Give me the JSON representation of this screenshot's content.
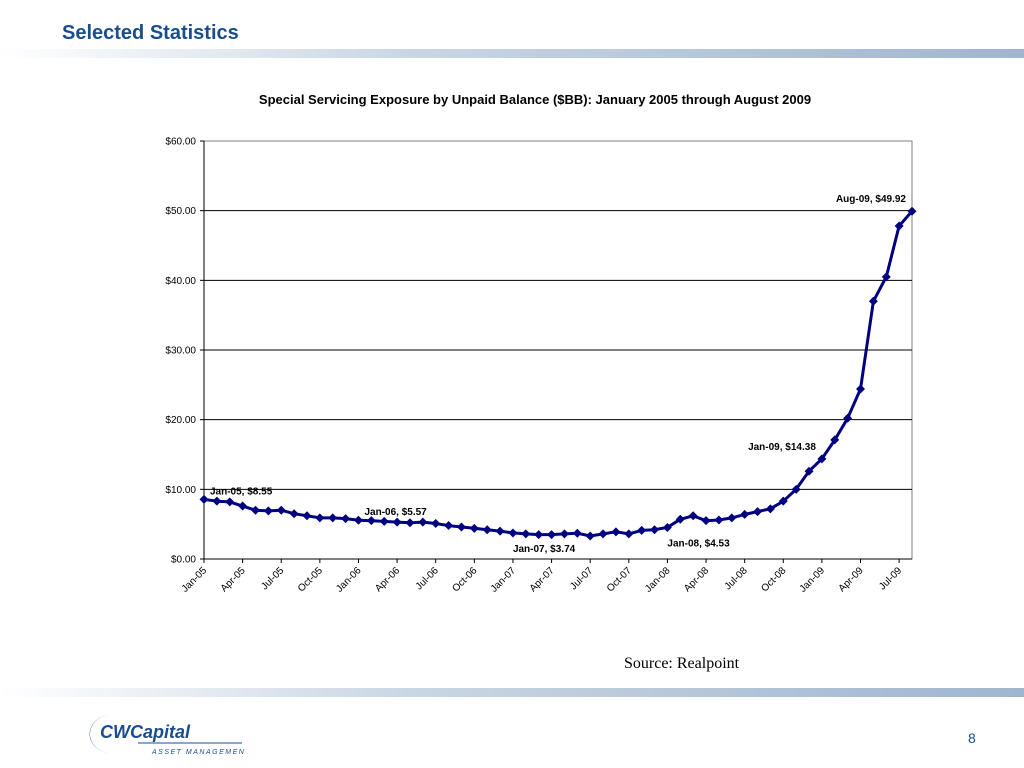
{
  "slide": {
    "title": "Selected Statistics",
    "source": "Source:  Realpoint",
    "page_number": "8"
  },
  "logo": {
    "name": "CWCapital",
    "tagline": "ASSET MANAGEMENT",
    "color": "#1a4d8c"
  },
  "colors": {
    "accent": "#1a4d8c",
    "series": "#000080",
    "gridline": "#000000"
  },
  "chart_data": {
    "type": "line",
    "title": "Special Servicing Exposure by Unpaid Balance ($BB): January 2005 through August 2009",
    "xlabel": "",
    "ylabel": "",
    "ylim": [
      0,
      60
    ],
    "y_ticks": [
      "$0.00",
      "$10.00",
      "$20.00",
      "$30.00",
      "$40.00",
      "$50.00",
      "$60.00"
    ],
    "x_tick_labels": [
      "Jan-05",
      "Apr-05",
      "Jul-05",
      "Oct-05",
      "Jan-06",
      "Apr-06",
      "Jul-06",
      "Oct-06",
      "Jan-07",
      "Apr-07",
      "Jul-07",
      "Oct-07",
      "Jan-08",
      "Apr-08",
      "Jul-08",
      "Oct-08",
      "Jan-09",
      "Apr-09",
      "Jul-09"
    ],
    "grid": true,
    "legend": "none",
    "categories": [
      "Jan-05",
      "Feb-05",
      "Mar-05",
      "Apr-05",
      "May-05",
      "Jun-05",
      "Jul-05",
      "Aug-05",
      "Sep-05",
      "Oct-05",
      "Nov-05",
      "Dec-05",
      "Jan-06",
      "Feb-06",
      "Mar-06",
      "Apr-06",
      "May-06",
      "Jun-06",
      "Jul-06",
      "Aug-06",
      "Sep-06",
      "Oct-06",
      "Nov-06",
      "Dec-06",
      "Jan-07",
      "Feb-07",
      "Mar-07",
      "Apr-07",
      "May-07",
      "Jun-07",
      "Jul-07",
      "Aug-07",
      "Sep-07",
      "Oct-07",
      "Nov-07",
      "Dec-07",
      "Jan-08",
      "Feb-08",
      "Mar-08",
      "Apr-08",
      "May-08",
      "Jun-08",
      "Jul-08",
      "Aug-08",
      "Sep-08",
      "Oct-08",
      "Nov-08",
      "Dec-08",
      "Jan-09",
      "Feb-09",
      "Mar-09",
      "Apr-09",
      "May-09",
      "Jun-09",
      "Jul-09",
      "Aug-09"
    ],
    "series": [
      {
        "values": [
          8.55,
          8.3,
          8.2,
          7.6,
          7.0,
          6.9,
          7.0,
          6.5,
          6.2,
          5.9,
          5.9,
          5.8,
          5.57,
          5.5,
          5.4,
          5.3,
          5.2,
          5.3,
          5.1,
          4.8,
          4.6,
          4.4,
          4.2,
          4.0,
          3.74,
          3.6,
          3.5,
          3.5,
          3.6,
          3.7,
          3.3,
          3.6,
          3.9,
          3.6,
          4.1,
          4.2,
          4.53,
          5.7,
          6.2,
          5.5,
          5.6,
          5.9,
          6.4,
          6.8,
          7.2,
          8.3,
          10.0,
          12.6,
          14.38,
          17.1,
          20.2,
          24.4,
          37.0,
          40.5,
          47.8,
          49.92
        ]
      }
    ],
    "annotations": [
      {
        "text": "Jan-05, $8.55",
        "category": "Jan-05",
        "value": 8.55,
        "position": "above-right"
      },
      {
        "text": "Jan-06, $5.57",
        "category": "Jan-06",
        "value": 5.57,
        "position": "above-right"
      },
      {
        "text": "Jan-07, $3.74",
        "category": "Jan-07",
        "value": 3.74,
        "position": "below"
      },
      {
        "text": "Jan-08, $4.53",
        "category": "Jan-08",
        "value": 4.53,
        "position": "below"
      },
      {
        "text": "Jan-09, $14.38",
        "category": "Jan-09",
        "value": 14.38,
        "position": "above-left"
      },
      {
        "text": "Aug-09, $49.92",
        "category": "Aug-09",
        "value": 49.92,
        "position": "above-left"
      }
    ]
  }
}
